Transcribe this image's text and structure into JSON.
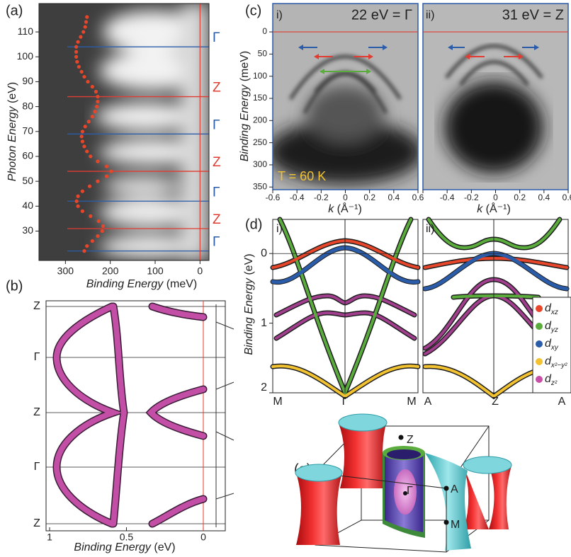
{
  "panel_a": {
    "label": "(a)",
    "x_label": "Binding Energy",
    "x_unit": "(meV)",
    "y_label": "Photon Energy",
    "y_unit": "(eV)",
    "xlim": [
      359,
      -20
    ],
    "xticks": [
      300,
      200,
      100,
      0
    ],
    "ylim": [
      18.2,
      121.4
    ],
    "yticks": [
      30,
      40,
      50,
      60,
      70,
      80,
      90,
      100,
      110
    ],
    "high_symmetry": [
      {
        "photon_energy": 104,
        "label": "Γ",
        "color": "#2a5caa"
      },
      {
        "photon_energy": 84,
        "label": "Z",
        "color": "#e03c31"
      },
      {
        "photon_energy": 69,
        "label": "Γ",
        "color": "#2a5caa"
      },
      {
        "photon_energy": 54,
        "label": "Z",
        "color": "#e03c31"
      },
      {
        "photon_energy": 42,
        "label": "Γ",
        "color": "#2a5caa"
      },
      {
        "photon_energy": 31,
        "label": "Z",
        "color": "#e03c31"
      },
      {
        "photon_energy": 22,
        "label": "Γ",
        "color": "#2a5caa"
      }
    ],
    "dispersion": {
      "color": "#e8462a",
      "photon_energy": [
        22,
        24,
        26,
        28,
        30,
        32,
        34,
        36,
        38,
        40,
        42,
        44,
        46,
        48,
        50,
        52,
        54,
        56,
        58,
        60,
        62,
        64,
        66,
        68,
        70,
        72,
        74,
        76,
        78,
        80,
        82,
        84,
        86,
        88,
        90,
        92,
        94,
        96,
        98,
        100,
        102,
        104,
        106,
        108,
        110,
        112,
        114,
        116
      ],
      "binding_energy": [
        258,
        252,
        240,
        228,
        218,
        216,
        226,
        244,
        262,
        272,
        275,
        272,
        262,
        246,
        228,
        208,
        198,
        208,
        228,
        244,
        252,
        258,
        262,
        264,
        262,
        256,
        248,
        240,
        234,
        230,
        228,
        228,
        232,
        240,
        250,
        258,
        264,
        270,
        274,
        276,
        276,
        276,
        272,
        266,
        260,
        256,
        254,
        252
      ]
    }
  },
  "panel_b": {
    "label": "(b)",
    "x_label": "Binding Energy",
    "x_unit": "(eV)",
    "xlim": [
      1.023,
      -0.143
    ],
    "xticks": [
      1,
      0.5,
      0
    ],
    "k_labels": [
      "Z",
      "Γ",
      "Z",
      "Γ",
      "Z"
    ]
  },
  "panel_c": {
    "label": "(c)",
    "y_label": "Binding Energy",
    "y_unit": "(meV)",
    "x_label": "k",
    "x_unit": "(Å⁻¹)",
    "xlim": [
      -0.6,
      0.6
    ],
    "xticks": [
      -0.6,
      -0.4,
      -0.2,
      0,
      0.2,
      0.4,
      0.6
    ],
    "ylim": [
      -64,
      356
    ],
    "yticks": [
      0,
      50,
      100,
      150,
      200,
      250,
      300,
      350
    ],
    "subpanels": [
      {
        "index": "i)",
        "title": "22 eV = Γ"
      },
      {
        "index": "ii)",
        "title": "31 eV = Z"
      }
    ],
    "temperature": "T = 60 K"
  },
  "panel_d": {
    "label": "(d)",
    "y_label": "Binding Energy",
    "y_unit": "(eV)",
    "ylim": [
      -0.49,
      2
    ],
    "yticks": [
      0,
      1,
      2
    ],
    "subpanels": [
      {
        "index": "i)",
        "k_labels": [
          "M",
          "Γ",
          "M"
        ]
      },
      {
        "index": "ii)",
        "k_labels": [
          "A",
          "Z",
          "A"
        ]
      }
    ],
    "legend": [
      {
        "symbol": "d",
        "subscript": "xz",
        "color": "#e8462a"
      },
      {
        "symbol": "d",
        "subscript": "yz",
        "color": "#5aad3c"
      },
      {
        "symbol": "d",
        "subscript": "xy",
        "color": "#2a5caa"
      },
      {
        "symbol": "d",
        "subscript": "x²−y²",
        "color": "#f2c230"
      },
      {
        "symbol": "d",
        "subscript": "z²",
        "color": "#c84fa8"
      }
    ]
  },
  "panel_e": {
    "label": "(e)",
    "points": [
      "Z",
      "Γ",
      "A",
      "M"
    ]
  }
}
